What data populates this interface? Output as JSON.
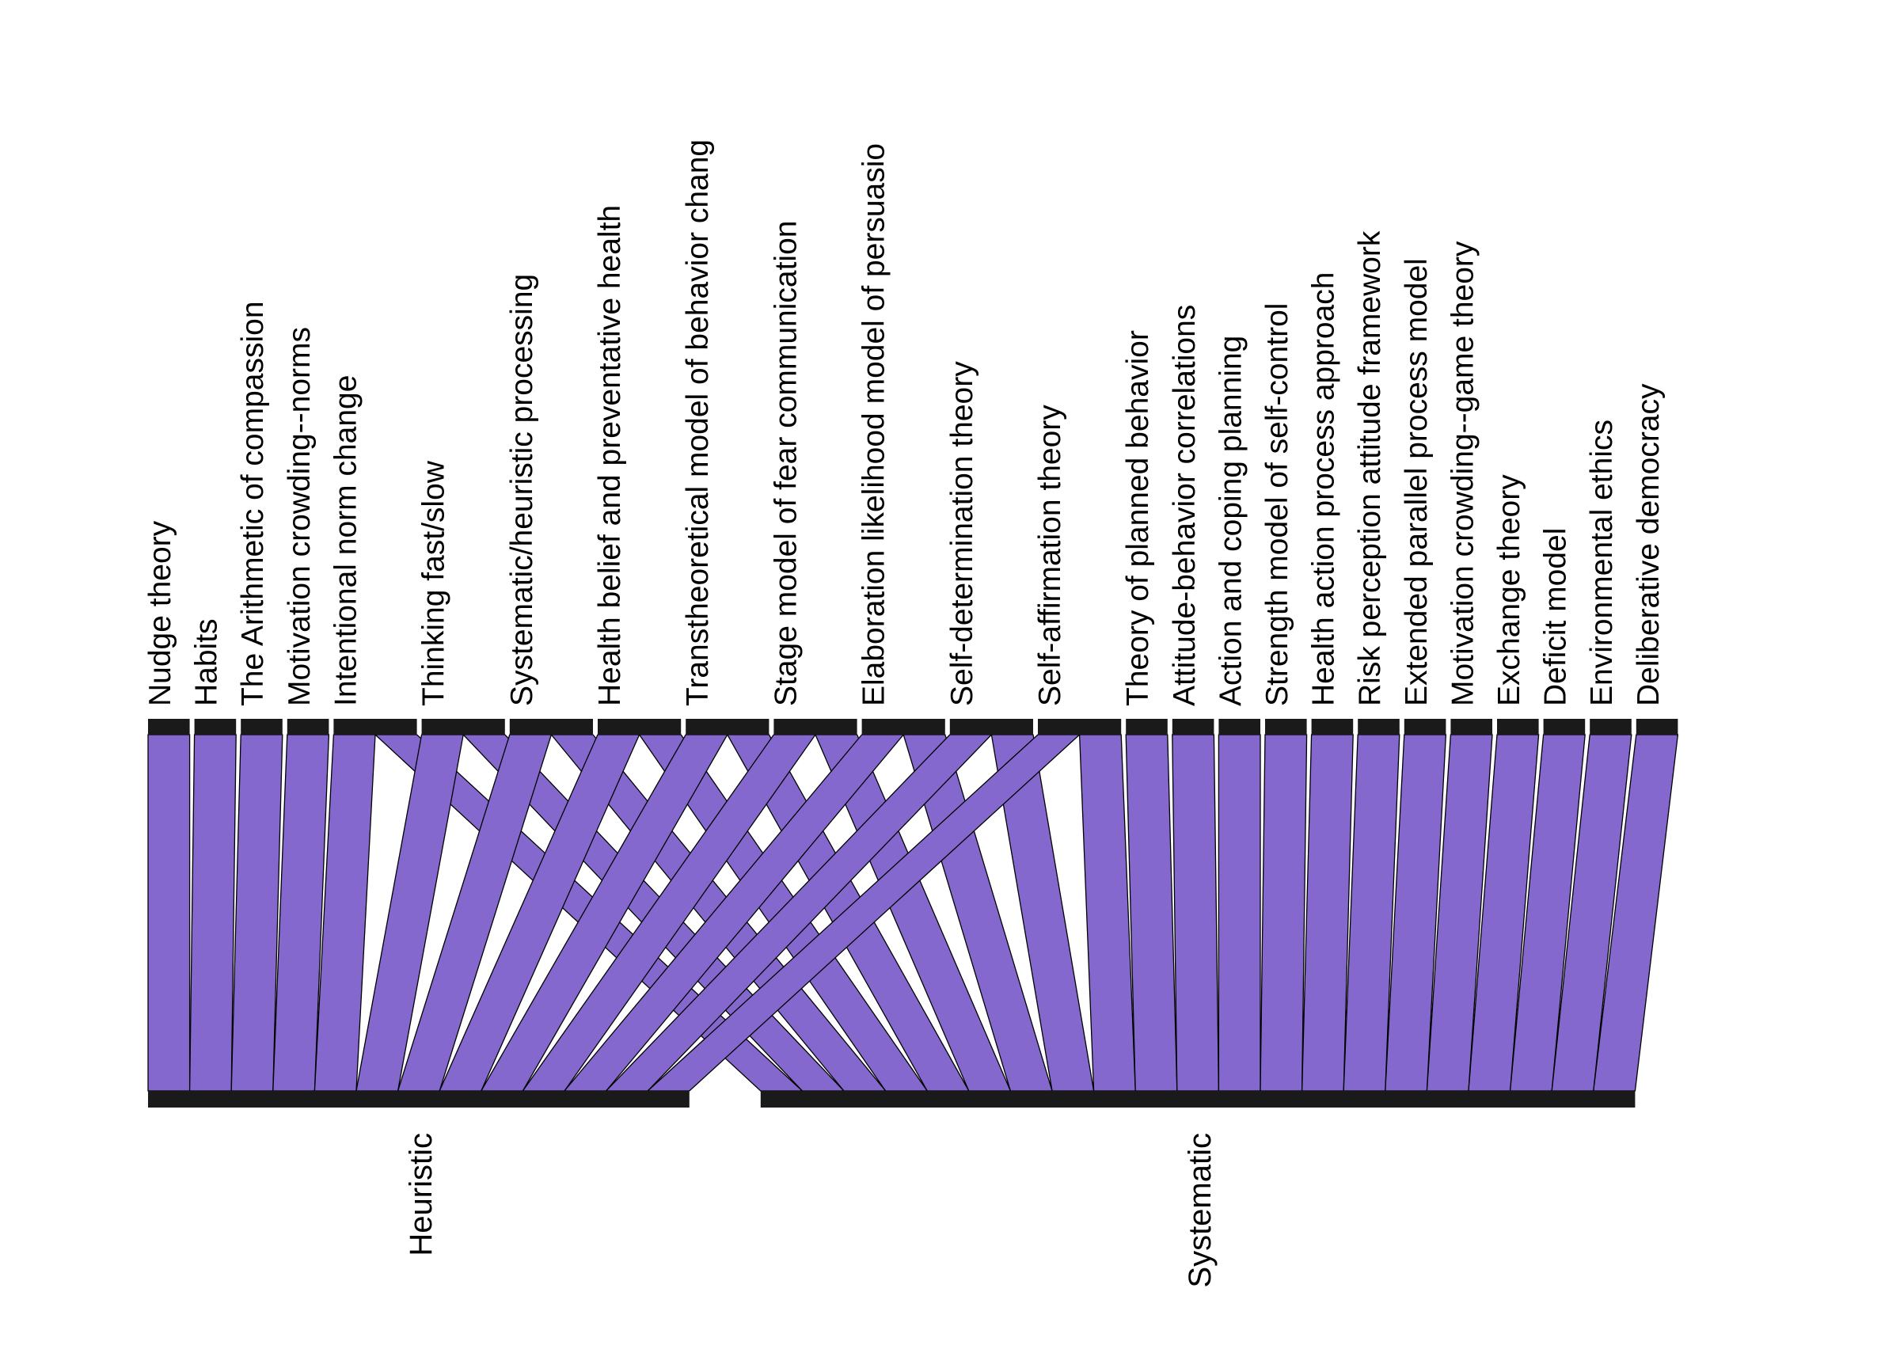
{
  "colors": {
    "flow_fill": "#8468CD",
    "flow_stroke": "#000000",
    "bar": "#1a1a1a",
    "background": "#ffffff"
  },
  "top_nodes": [
    {
      "label": "Nudge theory",
      "flows": [
        {
          "target": 0,
          "weight": 1
        }
      ]
    },
    {
      "label": "Habits",
      "flows": [
        {
          "target": 0,
          "weight": 1
        }
      ]
    },
    {
      "label": "The Arithmetic of compassion",
      "flows": [
        {
          "target": 0,
          "weight": 1
        }
      ]
    },
    {
      "label": "Motivation crowding--norms",
      "flows": [
        {
          "target": 0,
          "weight": 1
        }
      ]
    },
    {
      "label": "Intentional norm change",
      "flows": [
        {
          "target": 0,
          "weight": 1
        },
        {
          "target": 1,
          "weight": 1
        }
      ]
    },
    {
      "label": "Thinking fast/slow",
      "flows": [
        {
          "target": 0,
          "weight": 1
        },
        {
          "target": 1,
          "weight": 1
        }
      ]
    },
    {
      "label": "Systematic/heuristic processing",
      "flows": [
        {
          "target": 0,
          "weight": 1
        },
        {
          "target": 1,
          "weight": 1
        }
      ]
    },
    {
      "label": "Health belief and preventative health",
      "flows": [
        {
          "target": 0,
          "weight": 1
        },
        {
          "target": 1,
          "weight": 1
        }
      ]
    },
    {
      "label": "Transtheoretical model of behavior chang",
      "flows": [
        {
          "target": 0,
          "weight": 1
        },
        {
          "target": 1,
          "weight": 1
        }
      ]
    },
    {
      "label": "Stage model of fear communication",
      "flows": [
        {
          "target": 0,
          "weight": 1
        },
        {
          "target": 1,
          "weight": 1
        }
      ]
    },
    {
      "label": "Elaboration likelihood model of persuasio",
      "flows": [
        {
          "target": 0,
          "weight": 1
        },
        {
          "target": 1,
          "weight": 1
        }
      ]
    },
    {
      "label": "Self-determination theory",
      "flows": [
        {
          "target": 0,
          "weight": 1
        },
        {
          "target": 1,
          "weight": 1
        }
      ]
    },
    {
      "label": "Self-affirmation theory",
      "flows": [
        {
          "target": 0,
          "weight": 1
        },
        {
          "target": 1,
          "weight": 1
        }
      ]
    },
    {
      "label": "Theory of planned behavior",
      "flows": [
        {
          "target": 1,
          "weight": 1
        }
      ]
    },
    {
      "label": "Attitude-behavior correlations",
      "flows": [
        {
          "target": 1,
          "weight": 1
        }
      ]
    },
    {
      "label": "Action and coping planning",
      "flows": [
        {
          "target": 1,
          "weight": 1
        }
      ]
    },
    {
      "label": "Strength model of self-control",
      "flows": [
        {
          "target": 1,
          "weight": 1
        }
      ]
    },
    {
      "label": "Health action process approach",
      "flows": [
        {
          "target": 1,
          "weight": 1
        }
      ]
    },
    {
      "label": "Risk perception attitude framework",
      "flows": [
        {
          "target": 1,
          "weight": 1
        }
      ]
    },
    {
      "label": "Extended parallel process model",
      "flows": [
        {
          "target": 1,
          "weight": 1
        }
      ]
    },
    {
      "label": "Motivation crowding--game theory",
      "flows": [
        {
          "target": 1,
          "weight": 1
        }
      ]
    },
    {
      "label": "Exchange theory",
      "flows": [
        {
          "target": 1,
          "weight": 1
        }
      ]
    },
    {
      "label": "Deficit model",
      "flows": [
        {
          "target": 1,
          "weight": 1
        }
      ]
    },
    {
      "label": "Environmental ethics",
      "flows": [
        {
          "target": 1,
          "weight": 1
        }
      ]
    },
    {
      "label": "Deliberative democracy",
      "flows": [
        {
          "target": 1,
          "weight": 1
        }
      ]
    }
  ],
  "bottom_nodes": [
    {
      "label": "Heuristic"
    },
    {
      "label": "Systematic"
    }
  ]
}
